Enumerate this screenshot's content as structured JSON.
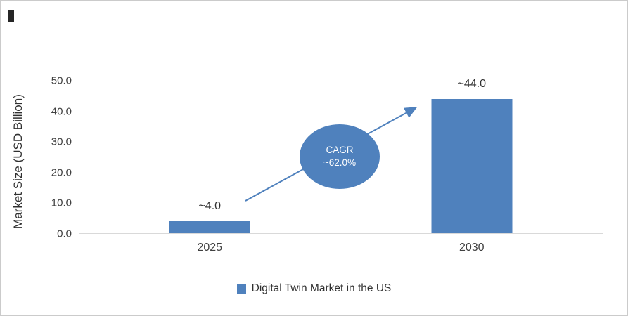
{
  "chart_data": {
    "type": "bar",
    "title": "",
    "categories": [
      "2025",
      "2030"
    ],
    "values": [
      4.0,
      44.0
    ],
    "value_labels": [
      "~4.0",
      "~44.0"
    ],
    "xlabel": "",
    "ylabel": "Market Size (USD Billion)",
    "ylim": [
      0,
      50
    ],
    "yticks": [
      "0.0",
      "10.0",
      "20.0",
      "30.0",
      "40.0",
      "50.0"
    ],
    "grid": false,
    "legend": {
      "position": "bottom",
      "entries": [
        "Digital Twin Market in the US"
      ]
    },
    "annotation": {
      "line1": "CAGR",
      "line2": "~62.0%"
    }
  },
  "colors": {
    "bar": "#4F81BD",
    "axis_line": "#d9d9d9",
    "text": "#404040"
  }
}
